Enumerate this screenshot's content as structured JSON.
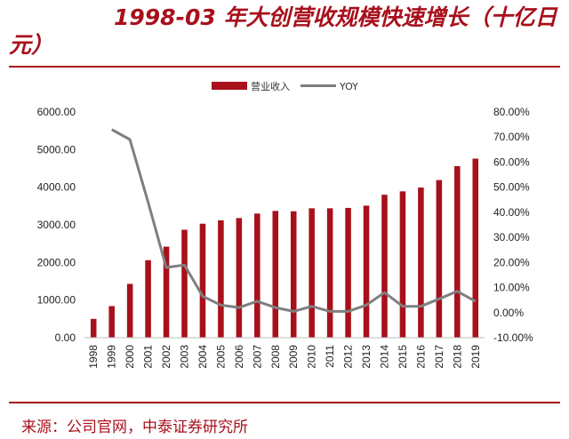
{
  "title": "1998-03 年大创营收规模快速增长（十亿日元）",
  "source": "来源：公司官网，中泰证券研究所",
  "colors": {
    "accent": "#a8101c",
    "bar": "#a8101c",
    "line": "#7f7f7f"
  },
  "chart_data": {
    "type": "bar",
    "categories": [
      "1998",
      "1999",
      "2000",
      "2001",
      "2002",
      "2003",
      "2004",
      "2005",
      "2006",
      "2007",
      "2008",
      "2009",
      "2010",
      "2011",
      "2012",
      "2013",
      "2014",
      "2015",
      "2016",
      "2017",
      "2018",
      "2019"
    ],
    "series": [
      {
        "name": "营业收入",
        "type": "bar",
        "axis": "left",
        "values": [
          500,
          840,
          1430,
          2060,
          2420,
          2870,
          3030,
          3120,
          3180,
          3300,
          3370,
          3360,
          3440,
          3440,
          3450,
          3510,
          3800,
          3890,
          3990,
          4190,
          4560,
          4760
        ]
      },
      {
        "name": "YOY",
        "type": "line",
        "axis": "right",
        "values": [
          null,
          73,
          69,
          44,
          18,
          19,
          6.5,
          3,
          2,
          4.5,
          2,
          0.5,
          2.5,
          0.5,
          0.5,
          3,
          8,
          2.5,
          2.5,
          5.5,
          8.5,
          4.5
        ]
      }
    ],
    "y_left": {
      "min": 0,
      "max": 6000,
      "ticks": [
        0,
        1000,
        2000,
        3000,
        4000,
        5000,
        6000
      ],
      "tick_labels": [
        "0.00",
        "1000.00",
        "2000.00",
        "3000.00",
        "4000.00",
        "5000.00",
        "6000.00"
      ]
    },
    "y_right": {
      "min": -10,
      "max": 80,
      "ticks": [
        -10,
        0,
        10,
        20,
        30,
        40,
        50,
        60,
        70,
        80
      ],
      "tick_labels": [
        "-10.00%",
        "0.00%",
        "10.00%",
        "20.00%",
        "30.00%",
        "40.00%",
        "50.00%",
        "60.00%",
        "70.00%",
        "80.00%"
      ]
    },
    "legend": {
      "position": "top",
      "entries": [
        "营业收入",
        "YOY"
      ]
    },
    "grid": false
  }
}
